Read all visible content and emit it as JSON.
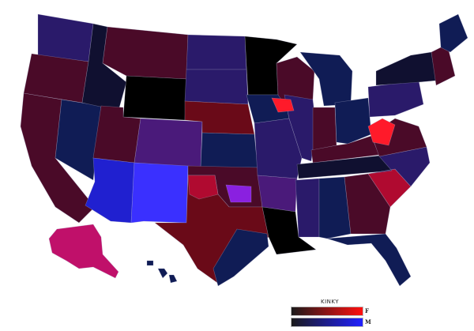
{
  "map": {
    "colors": {
      "background": "#ffffff",
      "dark": "#000000",
      "dark_navy": "#101030",
      "navy": "#101c55",
      "indigo": "#2a1a6a",
      "purple": "#4a1a7a",
      "maroon": "#4a0a28",
      "dark_red": "#6a0a18",
      "crimson": "#b00a30",
      "red": "#ff1a2a",
      "magenta": "#c0106a",
      "blue": "#2020d0",
      "bright_blue": "#3a30ff",
      "violet": "#8a20e0"
    },
    "regions": [
      {
        "name": "washington",
        "color": "indigo"
      },
      {
        "name": "oregon",
        "color": "maroon"
      },
      {
        "name": "california",
        "color": "maroon"
      },
      {
        "name": "nevada",
        "color": "navy"
      },
      {
        "name": "idaho",
        "color": "dark_navy"
      },
      {
        "name": "montana",
        "color": "maroon"
      },
      {
        "name": "wyoming",
        "color": "dark"
      },
      {
        "name": "utah",
        "color": "maroon"
      },
      {
        "name": "arizona",
        "color": "blue"
      },
      {
        "name": "colorado",
        "color": "purple"
      },
      {
        "name": "new-mexico",
        "color": "bright_blue"
      },
      {
        "name": "north-dakota",
        "color": "indigo"
      },
      {
        "name": "south-dakota",
        "color": "indigo"
      },
      {
        "name": "nebraska",
        "color": "dark_red"
      },
      {
        "name": "kansas",
        "color": "navy"
      },
      {
        "name": "oklahoma",
        "color": "maroon"
      },
      {
        "name": "texas",
        "color": "dark_red"
      },
      {
        "name": "texas-panhandle",
        "color": "crimson"
      },
      {
        "name": "texas-east",
        "color": "navy"
      },
      {
        "name": "minnesota",
        "color": "dark"
      },
      {
        "name": "iowa",
        "color": "navy"
      },
      {
        "name": "missouri",
        "color": "indigo"
      },
      {
        "name": "arkansas",
        "color": "purple"
      },
      {
        "name": "louisiana",
        "color": "dark"
      },
      {
        "name": "wisconsin",
        "color": "maroon"
      },
      {
        "name": "illinois",
        "color": "indigo"
      },
      {
        "name": "michigan",
        "color": "navy"
      },
      {
        "name": "indiana",
        "color": "maroon"
      },
      {
        "name": "ohio",
        "color": "navy"
      },
      {
        "name": "kentucky",
        "color": "maroon"
      },
      {
        "name": "tennessee",
        "color": "dark_navy"
      },
      {
        "name": "mississippi",
        "color": "indigo"
      },
      {
        "name": "alabama",
        "color": "navy"
      },
      {
        "name": "georgia",
        "color": "maroon"
      },
      {
        "name": "florida",
        "color": "navy"
      },
      {
        "name": "south-carolina",
        "color": "crimson"
      },
      {
        "name": "north-carolina",
        "color": "indigo"
      },
      {
        "name": "virginia",
        "color": "maroon"
      },
      {
        "name": "west-virginia",
        "color": "red"
      },
      {
        "name": "pennsylvania",
        "color": "indigo"
      },
      {
        "name": "new-york",
        "color": "dark_navy"
      },
      {
        "name": "new-england",
        "color": "maroon"
      },
      {
        "name": "maine",
        "color": "navy"
      },
      {
        "name": "iowa-hotspot",
        "color": "red"
      },
      {
        "name": "arkansas-violet",
        "color": "violet"
      },
      {
        "name": "alaska",
        "color": "magenta"
      },
      {
        "name": "hawaii",
        "color": "navy"
      }
    ]
  },
  "legend": {
    "title": "KINKY",
    "female_label": "F",
    "male_label": "M",
    "female_gradient": [
      "#1a1a1a",
      "#ff1010"
    ],
    "male_gradient": [
      "#1a1a1a",
      "#2020ff"
    ]
  }
}
